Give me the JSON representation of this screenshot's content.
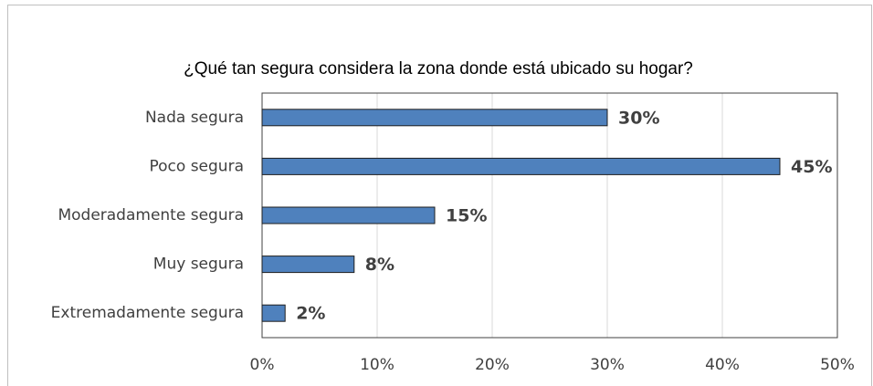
{
  "chart_data": {
    "type": "barh",
    "title": "¿Qué tan segura considera la zona donde está ubicado su hogar?",
    "categories": [
      "Nada segura",
      "Poco segura",
      "Moderadamente segura",
      "Muy segura",
      "Extremadamente segura"
    ],
    "values": [
      30,
      45,
      15,
      8,
      2
    ],
    "value_labels": [
      "30%",
      "45%",
      "15%",
      "8%",
      "2%"
    ],
    "color": "#4f81bd",
    "xlim": [
      0,
      50
    ],
    "xticks": [
      {
        "value": 0,
        "label": "0%"
      },
      {
        "value": 10,
        "label": "10%"
      },
      {
        "value": 20,
        "label": "20%"
      },
      {
        "value": 30,
        "label": "30%"
      },
      {
        "value": 40,
        "label": "40%"
      },
      {
        "value": 50,
        "label": "50%"
      }
    ],
    "grid": true
  }
}
